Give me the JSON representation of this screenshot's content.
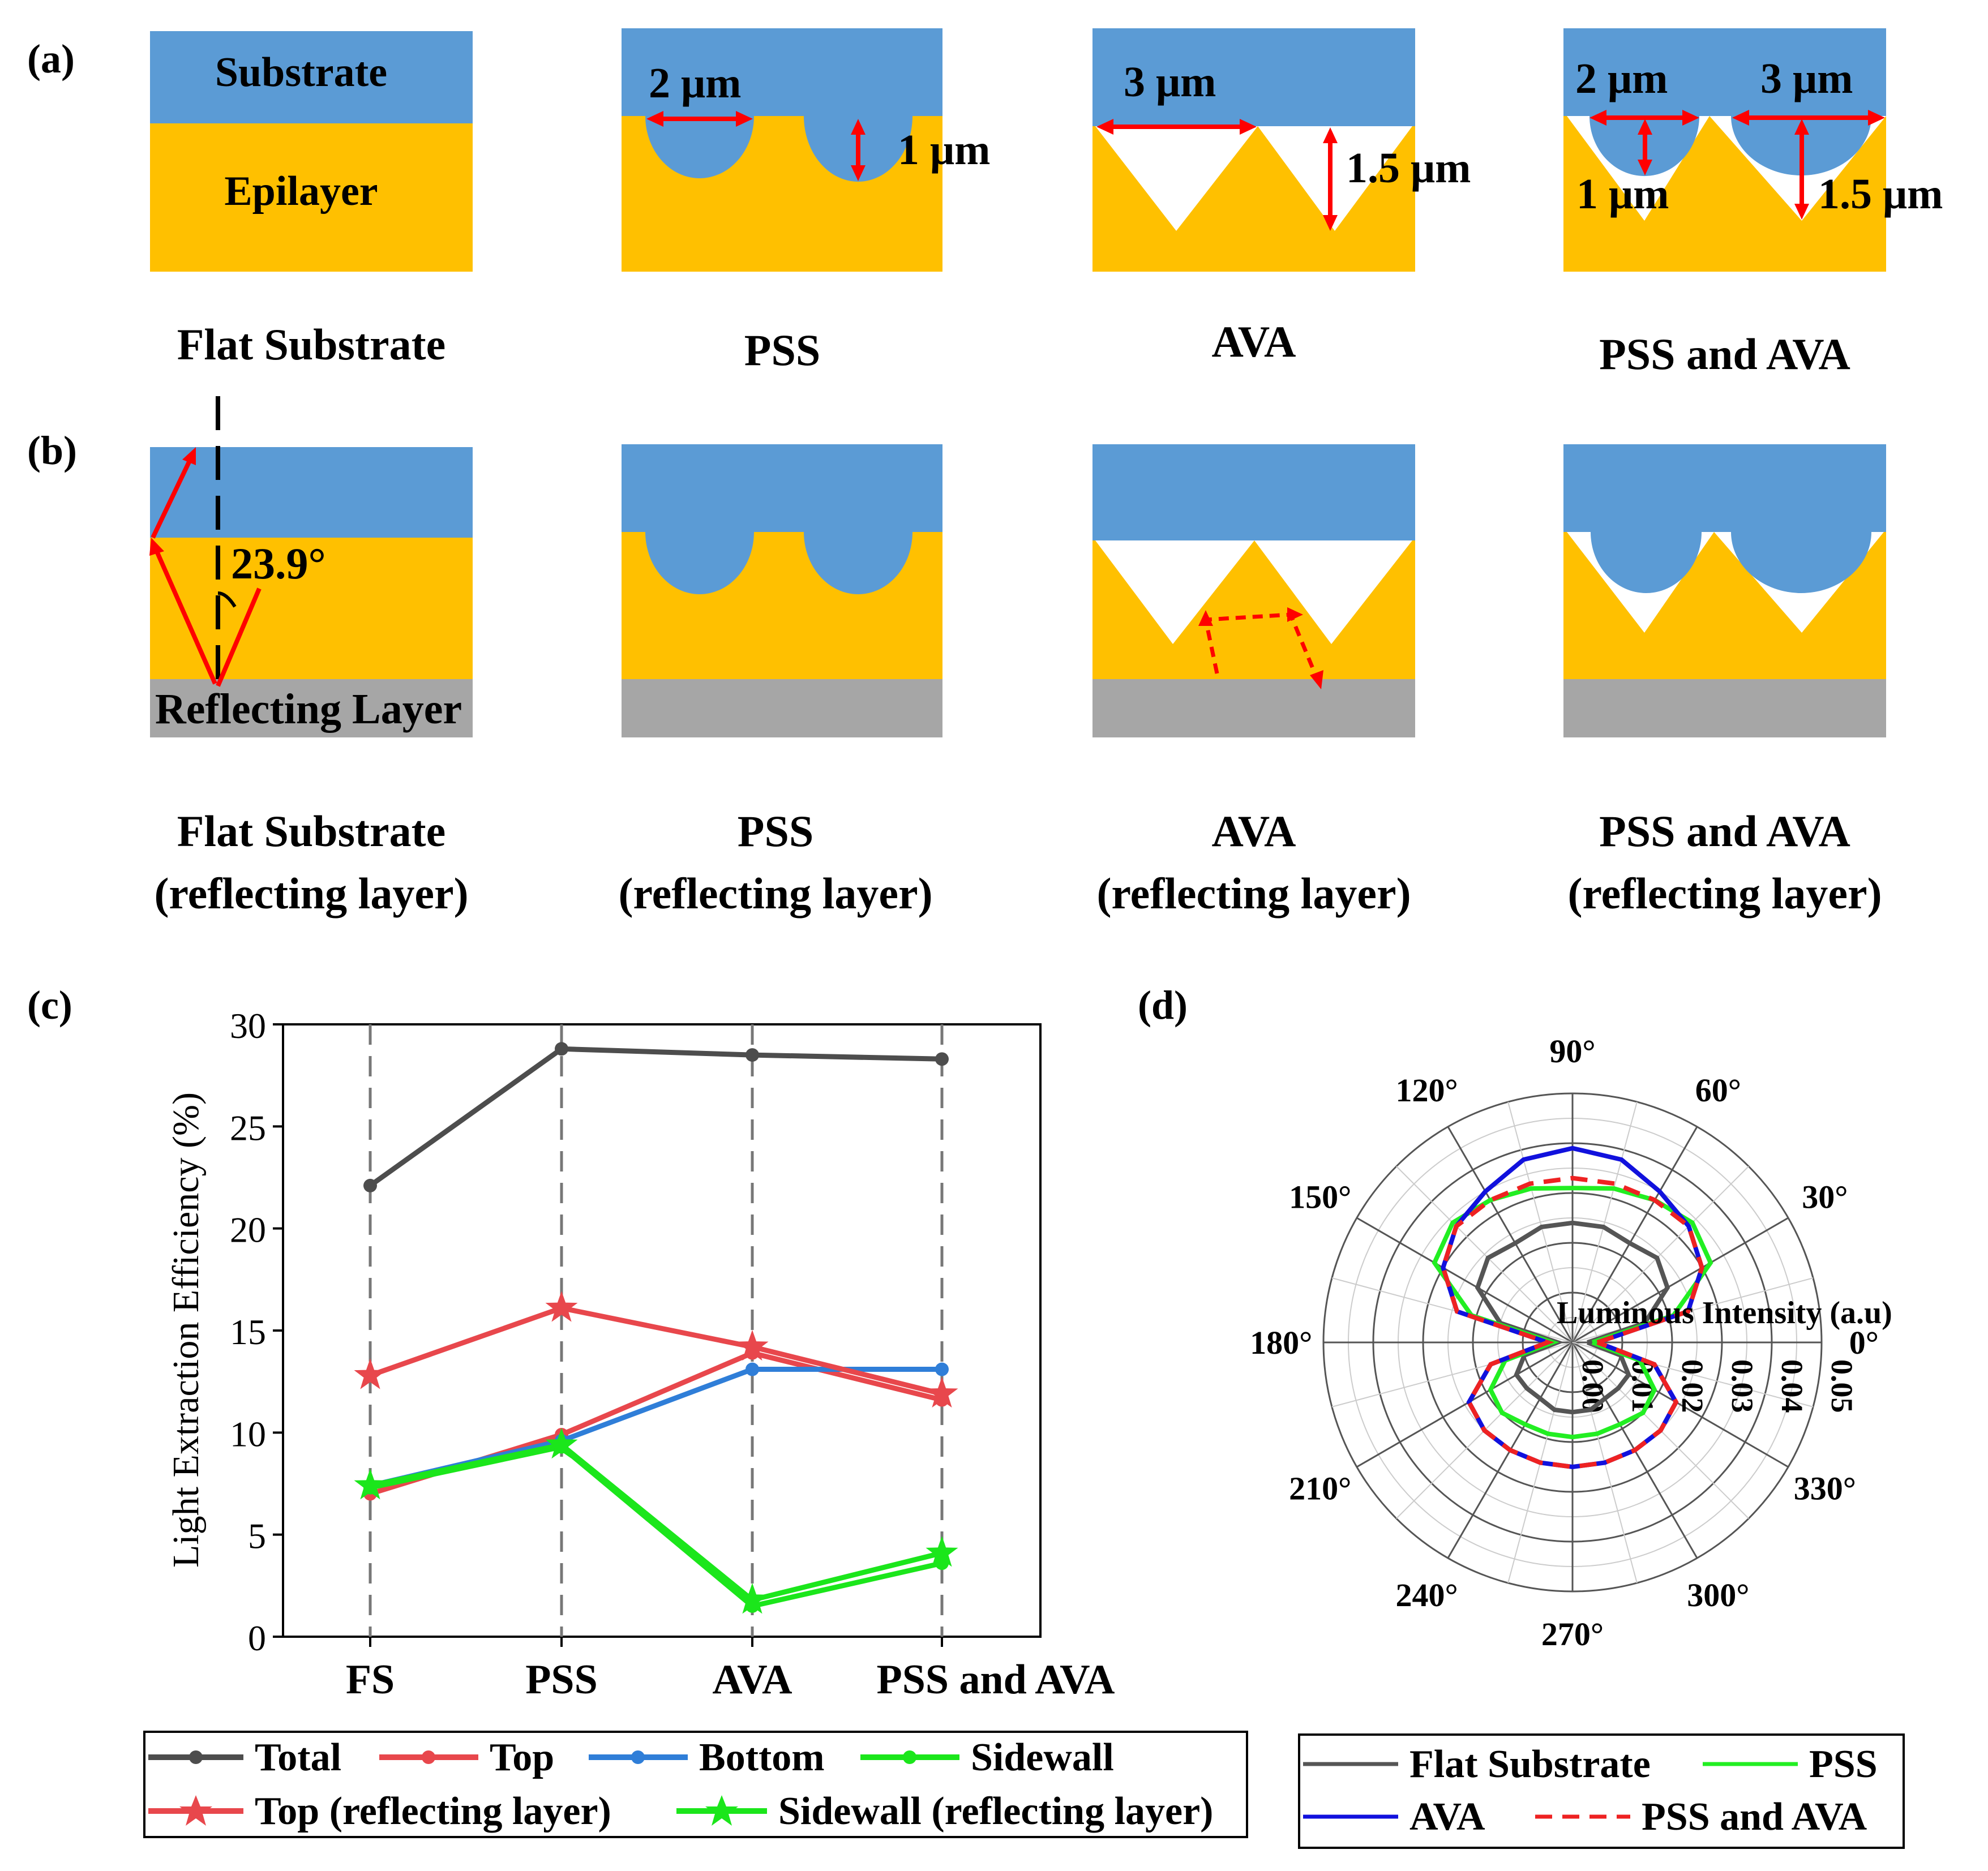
{
  "panels": {
    "a": "(a)",
    "b": "(b)",
    "c": "(c)",
    "d": "(d)"
  },
  "colors": {
    "substrate": "#5b9bd5",
    "epilayer": "#ffc000",
    "reflector": "#a6a6a6",
    "arrow": "#ff0000",
    "total": "#4d4d4d",
    "top": "#e8474c",
    "bottom": "#2f7ed8",
    "sidewall": "#1be61b",
    "flat": "#555555",
    "pss": "#22ee22",
    "ava": "#1111dd",
    "pss_ava": "#ee2222"
  },
  "panel_a": {
    "substrate_label": "Substrate",
    "epilayer_label": "Epilayer",
    "pss_width": "2 μm",
    "pss_depth": "1 μm",
    "ava_width": "3 μm",
    "ava_depth": "1.5 μm",
    "combo_pss_width": "2 μm",
    "combo_ava_width": "3 μm",
    "combo_pss_depth": "1 μm",
    "combo_ava_depth": "1.5 μm",
    "captions": [
      "Flat Substrate",
      "PSS",
      "AVA",
      "PSS and AVA"
    ]
  },
  "panel_b": {
    "angle": "23.9°",
    "reflecting_label": "Reflecting Layer",
    "captions": [
      {
        "line1": "Flat Substrate",
        "line2": "(reflecting layer)"
      },
      {
        "line1": "PSS",
        "line2": "(reflecting layer)"
      },
      {
        "line1": "AVA",
        "line2": "(reflecting layer)"
      },
      {
        "line1": "PSS and AVA",
        "line2": "(reflecting layer)"
      }
    ]
  },
  "chart_data": [
    {
      "type": "line",
      "panel": "c",
      "title": "",
      "xlabel": "",
      "ylabel": "Light Extraction Efficiency (%)",
      "categories": [
        "FS",
        "PSS",
        "AVA",
        "PSS and AVA"
      ],
      "ylim": [
        0,
        30
      ],
      "yticks": [
        "0",
        "5",
        "10",
        "15",
        "20",
        "25",
        "30"
      ],
      "series": [
        {
          "name": "Total",
          "values": [
            22.1,
            28.8,
            28.5,
            28.3
          ]
        },
        {
          "name": "Top",
          "values": [
            7.0,
            9.9,
            13.9,
            11.6
          ]
        },
        {
          "name": "Bottom",
          "values": [
            7.4,
            9.6,
            13.1,
            13.1
          ]
        },
        {
          "name": "Sidewall",
          "values": [
            7.3,
            9.3,
            1.5,
            3.6
          ]
        },
        {
          "name": "Top (reflecting layer)",
          "values": [
            12.8,
            16.1,
            14.2,
            11.9
          ]
        },
        {
          "name": "Sidewall (reflecting layer)",
          "values": [
            7.4,
            9.4,
            1.8,
            4.1
          ]
        }
      ]
    },
    {
      "type": "polar",
      "panel": "d",
      "radial_label": "Luminous Intensity (a.u)",
      "rlim": [
        0,
        0.05
      ],
      "radial_ticks": [
        "0.00",
        "0.01",
        "0.02",
        "0.03",
        "0.04",
        "0.05"
      ],
      "angle_labels": [
        "0°",
        "30°",
        "60°",
        "90°",
        "120°",
        "150°",
        "180°",
        "210°",
        "240°",
        "270°",
        "300°",
        "330°"
      ],
      "series": [
        {
          "name": "Flat Substrate",
          "angles": [
            0,
            15,
            30,
            45,
            60,
            75,
            90,
            105,
            120,
            135,
            150,
            165,
            180,
            195,
            210,
            225,
            240,
            255,
            270,
            285,
            300,
            315,
            330,
            345
          ],
          "values": [
            0.003,
            0.015,
            0.022,
            0.024,
            0.023,
            0.024,
            0.024,
            0.024,
            0.023,
            0.024,
            0.022,
            0.015,
            0.003,
            0.01,
            0.013,
            0.013,
            0.013,
            0.014,
            0.014,
            0.014,
            0.013,
            0.013,
            0.013,
            0.01
          ]
        },
        {
          "name": "PSS",
          "angles": [
            0,
            15,
            30,
            45,
            60,
            75,
            90,
            105,
            120,
            135,
            150,
            165,
            180,
            195,
            210,
            225,
            240,
            255,
            270,
            285,
            300,
            315,
            330,
            345
          ],
          "values": [
            0.004,
            0.021,
            0.032,
            0.034,
            0.033,
            0.032,
            0.031,
            0.032,
            0.033,
            0.034,
            0.032,
            0.021,
            0.004,
            0.014,
            0.019,
            0.02,
            0.019,
            0.019,
            0.019,
            0.019,
            0.019,
            0.02,
            0.019,
            0.014
          ]
        },
        {
          "name": "AVA",
          "angles": [
            0,
            15,
            30,
            45,
            60,
            75,
            90,
            105,
            120,
            135,
            150,
            165,
            180,
            195,
            210,
            225,
            240,
            255,
            270,
            285,
            300,
            315,
            330,
            345
          ],
          "values": [
            0.005,
            0.024,
            0.03,
            0.033,
            0.035,
            0.038,
            0.039,
            0.038,
            0.035,
            0.033,
            0.03,
            0.024,
            0.005,
            0.017,
            0.024,
            0.025,
            0.025,
            0.025,
            0.025,
            0.025,
            0.025,
            0.025,
            0.024,
            0.017
          ]
        },
        {
          "name": "PSS and AVA",
          "angles": [
            0,
            15,
            30,
            45,
            60,
            75,
            90,
            105,
            120,
            135,
            150,
            165,
            180,
            195,
            210,
            225,
            240,
            255,
            270,
            285,
            300,
            315,
            330,
            345
          ],
          "values": [
            0.005,
            0.024,
            0.03,
            0.033,
            0.033,
            0.033,
            0.033,
            0.033,
            0.033,
            0.033,
            0.03,
            0.024,
            0.005,
            0.017,
            0.024,
            0.025,
            0.025,
            0.025,
            0.025,
            0.025,
            0.025,
            0.025,
            0.024,
            0.017
          ]
        }
      ]
    }
  ],
  "legend_c": [
    "Total",
    "Top",
    "Bottom",
    "Sidewall",
    "Top (reflecting layer)",
    "Sidewall (reflecting layer)"
  ],
  "legend_d": [
    "Flat Substrate",
    "PSS",
    "AVA",
    "PSS and AVA"
  ]
}
